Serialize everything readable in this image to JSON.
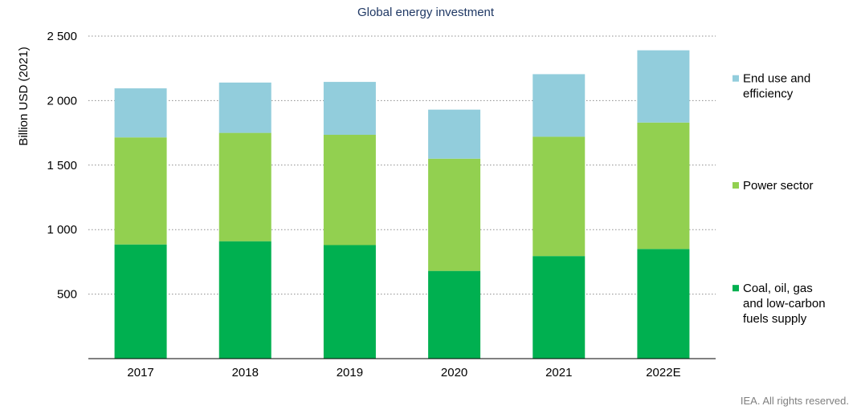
{
  "chart_data": {
    "type": "bar",
    "stacked": true,
    "title": "Global energy investment",
    "ylabel": "Billion USD (2021)",
    "xlabel": "",
    "categories": [
      "2017",
      "2018",
      "2019",
      "2020",
      "2021",
      "2022E"
    ],
    "ylim": [
      0,
      2500
    ],
    "yticks": [
      500,
      1000,
      1500,
      2000,
      2500
    ],
    "ytick_labels": [
      "500",
      "1 000",
      "1 500",
      "2 000",
      "2 500"
    ],
    "grid": "horizontal dotted",
    "legend_position": "right",
    "series": [
      {
        "name": "Coal, oil, gas and low-carbon fuels supply",
        "legend_lines": [
          "Coal, oil, gas",
          "and low-carbon",
          "fuels supply"
        ],
        "color": "#00b050",
        "values": [
          885,
          910,
          880,
          680,
          795,
          850
        ]
      },
      {
        "name": "Power sector",
        "legend_lines": [
          "Power sector"
        ],
        "color": "#92d050",
        "values": [
          830,
          840,
          855,
          870,
          925,
          980
        ]
      },
      {
        "name": "End use and efficiency",
        "legend_lines": [
          "End use and",
          "efficiency"
        ],
        "color": "#92cddc",
        "values": [
          380,
          390,
          410,
          380,
          485,
          560
        ]
      }
    ]
  },
  "credit": "IEA. All rights reserved."
}
